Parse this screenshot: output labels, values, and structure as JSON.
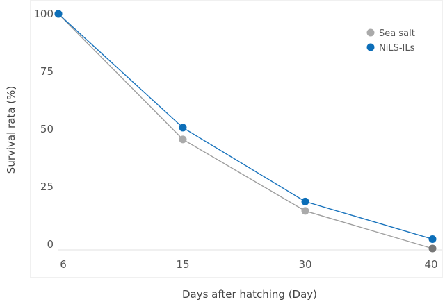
{
  "chart_data": {
    "type": "line",
    "title": "",
    "xlabel": "Days after hatching (Day)",
    "ylabel": "Survival rata (%)",
    "x": [
      6,
      15,
      30,
      40
    ],
    "x_tick_labels": [
      "6",
      "15",
      "30",
      "40"
    ],
    "y_tick_labels": [
      "100",
      "75",
      "50",
      "25",
      "0"
    ],
    "ylim": [
      0,
      100
    ],
    "grid": false,
    "legend_position": "top-right",
    "series": [
      {
        "name": "Sea salt",
        "values": [
          100,
          46.5,
          16,
          0
        ],
        "color": "#aaaaaa",
        "line_color": "#9e9e9e",
        "end_marker_color": "#777777"
      },
      {
        "name": "NiLS-ILs",
        "values": [
          100,
          51.5,
          20,
          4
        ],
        "color": "#0c6eb8",
        "line_color": "#1a74bd"
      }
    ]
  }
}
